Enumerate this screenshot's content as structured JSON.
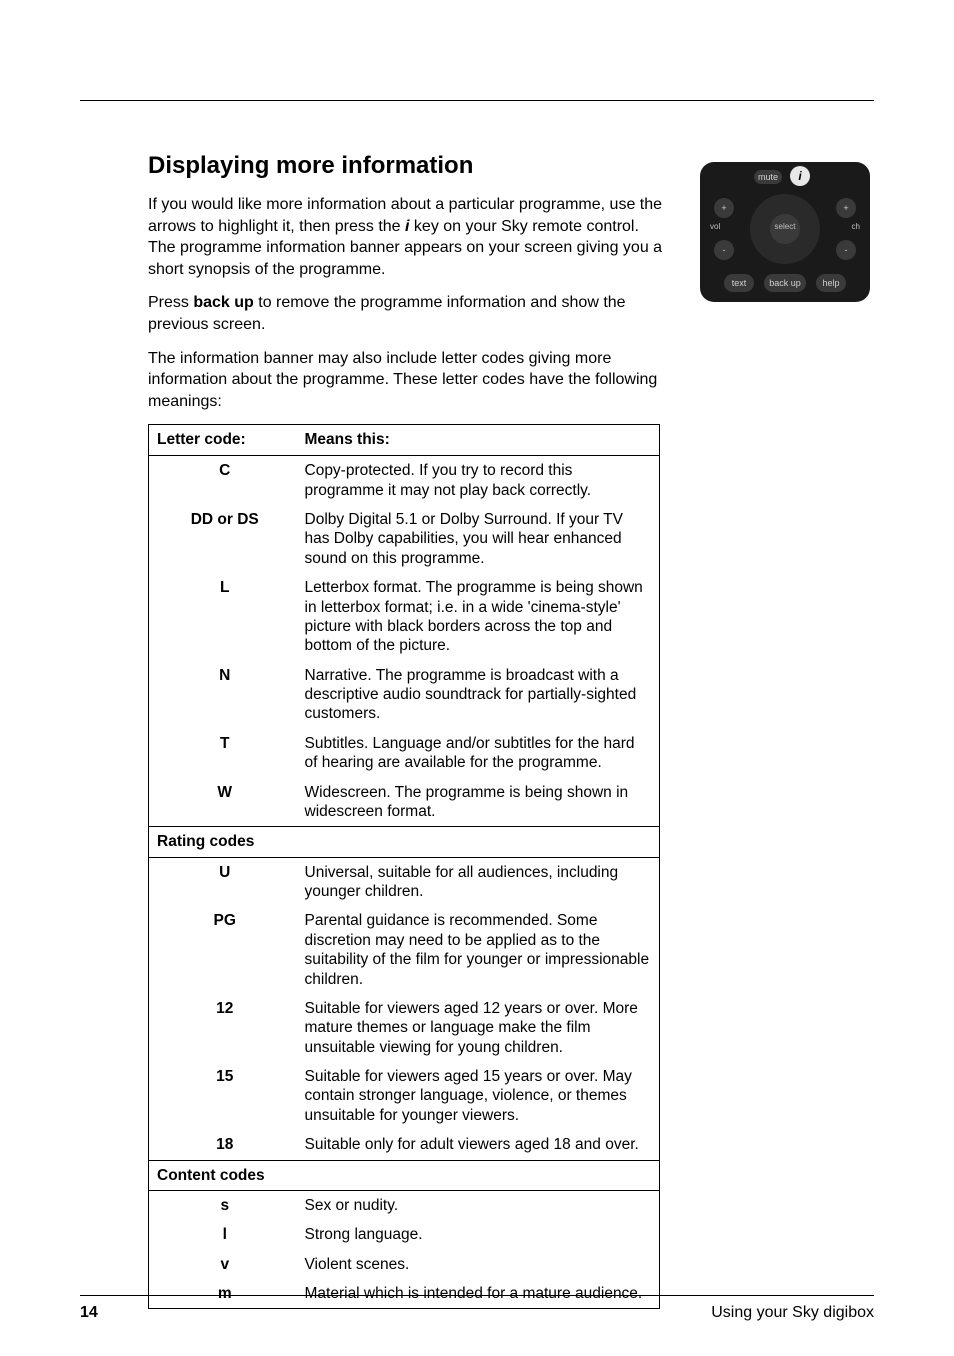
{
  "heading": "Displaying more information",
  "para1_a": "If you would like more information about a particular programme, use the arrows to highlight it, then press the ",
  "para1_i": "i",
  "para1_b": " key on your Sky remote control.  The programme information banner appears on your screen giving you a short synopsis of the programme.",
  "para2_a": "Press ",
  "para2_bold": "back up",
  "para2_b": " to remove the programme information and show the previous screen.",
  "para3": "The information banner may also include letter codes giving more information about the programme.  These letter codes have the following meanings:",
  "table": {
    "header_left": "Letter code:",
    "header_right": "Means this:",
    "rows1": [
      {
        "code": "C",
        "desc": "Copy-protected.  If you try to record this programme it may not play back correctly."
      },
      {
        "code": "DD or DS",
        "desc": "Dolby Digital 5.1 or Dolby Surround.  If your TV has Dolby capabilities, you will hear enhanced sound on this programme."
      },
      {
        "code": "L",
        "desc": "Letterbox format.  The programme is being shown in letterbox format; i.e. in a wide 'cinema-style' picture with black borders across the top and bottom of the picture."
      },
      {
        "code": "N",
        "desc": "Narrative.  The programme is broadcast with a descriptive audio soundtrack for partially-sighted customers."
      },
      {
        "code": "T",
        "desc": "Subtitles.  Language and/or subtitles for the hard of hearing are available for the programme."
      },
      {
        "code": "W",
        "desc": "Widescreen.  The programme is being shown in widescreen format."
      }
    ],
    "section2": "Rating codes",
    "rows2": [
      {
        "code": "U",
        "desc": "Universal, suitable for all audiences, including younger children."
      },
      {
        "code": "PG",
        "desc": "Parental guidance is recommended.  Some discretion may need to be applied as to the suitability of the film for younger or impressionable children."
      },
      {
        "code": "12",
        "desc": "Suitable for viewers aged 12 years or over.  More mature themes or language make the film unsuitable viewing for young children."
      },
      {
        "code": "15",
        "desc": "Suitable for viewers aged 15 years or over.  May contain stronger language, violence, or themes unsuitable for younger viewers."
      },
      {
        "code": "18",
        "desc": "Suitable only for adult viewers aged 18 and over."
      }
    ],
    "section3": "Content codes",
    "rows3": [
      {
        "code": "s",
        "desc": "Sex or nudity."
      },
      {
        "code": "l",
        "desc": "Strong language."
      },
      {
        "code": "v",
        "desc": "Violent scenes."
      },
      {
        "code": "m",
        "desc": "Material which is intended for a mature audience."
      }
    ]
  },
  "remote": {
    "mute": "mute",
    "info": "i",
    "select": "select",
    "vol": "vol",
    "ch": "ch",
    "plus": "+",
    "minus": "-",
    "text": "text",
    "backup": "back up",
    "help": "help"
  },
  "page_number": "14",
  "footer": "Using your Sky digibox"
}
